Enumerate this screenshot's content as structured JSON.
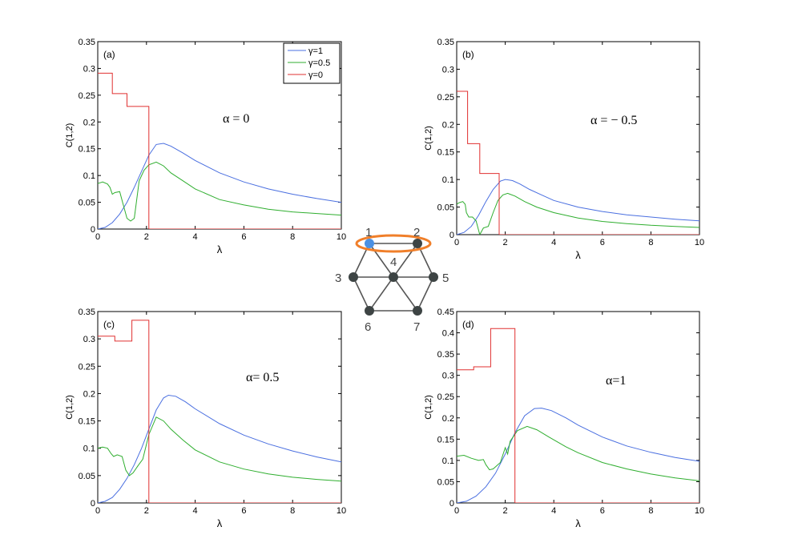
{
  "chart_data": [
    {
      "type": "line",
      "panel_label": "(a)",
      "annotation": "α = 0",
      "xlabel": "λ",
      "ylabel": "C(1,2)",
      "xlim": [
        0,
        10
      ],
      "ylim": [
        0,
        0.35
      ],
      "xticks": [
        0,
        2,
        4,
        6,
        8,
        10
      ],
      "yticks": [
        0,
        0.05,
        0.1,
        0.15,
        0.2,
        0.25,
        0.3,
        0.35
      ],
      "legend": {
        "placement": "top-right",
        "entries": [
          "γ=1",
          "γ=0.5",
          "γ=0"
        ]
      },
      "series": [
        {
          "name": "γ=1",
          "color": "#4a6fe0",
          "x": [
            0,
            0.3,
            0.6,
            0.9,
            1.2,
            1.5,
            1.8,
            2.1,
            2.4,
            2.7,
            3,
            3.5,
            4,
            5,
            6,
            7,
            8,
            9,
            10
          ],
          "y": [
            0,
            0.003,
            0.012,
            0.028,
            0.05,
            0.078,
            0.108,
            0.138,
            0.158,
            0.16,
            0.155,
            0.142,
            0.128,
            0.105,
            0.088,
            0.075,
            0.065,
            0.057,
            0.05
          ]
        },
        {
          "name": "γ=0.5",
          "color": "#2fae2f",
          "x": [
            0,
            0.2,
            0.4,
            0.5,
            0.6,
            0.7,
            0.9,
            1.05,
            1.2,
            1.35,
            1.5,
            1.7,
            1.9,
            2.1,
            2.4,
            2.7,
            3,
            3.5,
            4,
            5,
            6,
            7,
            8,
            9,
            10
          ],
          "y": [
            0.085,
            0.088,
            0.084,
            0.078,
            0.065,
            0.068,
            0.07,
            0.045,
            0.02,
            0.015,
            0.02,
            0.09,
            0.11,
            0.12,
            0.125,
            0.118,
            0.105,
            0.09,
            0.075,
            0.055,
            0.045,
            0.037,
            0.032,
            0.029,
            0.026
          ]
        },
        {
          "name": "γ=0",
          "color": "#e03030",
          "x": [
            0,
            0.6,
            0.6,
            1.2,
            1.2,
            2.1,
            2.1,
            10
          ],
          "y": [
            0.291,
            0.291,
            0.253,
            0.253,
            0.229,
            0.229,
            0,
            0
          ]
        }
      ]
    },
    {
      "type": "line",
      "panel_label": "(b)",
      "annotation": "α = − 0.5",
      "xlabel": "λ",
      "ylabel": "C(1,2)",
      "xlim": [
        0,
        10
      ],
      "ylim": [
        0,
        0.35
      ],
      "xticks": [
        0,
        2,
        4,
        6,
        8,
        10
      ],
      "yticks": [
        0,
        0.05,
        0.1,
        0.15,
        0.2,
        0.25,
        0.3,
        0.35
      ],
      "series": [
        {
          "name": "γ=1",
          "color": "#4a6fe0",
          "x": [
            0,
            0.3,
            0.6,
            0.9,
            1.2,
            1.5,
            1.8,
            2.0,
            2.3,
            2.6,
            3,
            3.5,
            4,
            5,
            6,
            7,
            8,
            9,
            10
          ],
          "y": [
            0,
            0.004,
            0.015,
            0.035,
            0.06,
            0.082,
            0.097,
            0.1,
            0.098,
            0.092,
            0.082,
            0.072,
            0.062,
            0.05,
            0.042,
            0.036,
            0.032,
            0.028,
            0.025
          ]
        },
        {
          "name": "γ=0.5",
          "color": "#2fae2f",
          "x": [
            0,
            0.1,
            0.25,
            0.35,
            0.4,
            0.5,
            0.65,
            0.8,
            0.95,
            1.1,
            1.3,
            1.5,
            1.7,
            1.9,
            2.1,
            2.4,
            2.8,
            3.3,
            4,
            5,
            6,
            7,
            8,
            9,
            10
          ],
          "y": [
            0.055,
            0.058,
            0.06,
            0.055,
            0.04,
            0.032,
            0.032,
            0.025,
            0.0,
            0.012,
            0.015,
            0.04,
            0.062,
            0.072,
            0.075,
            0.07,
            0.06,
            0.05,
            0.04,
            0.03,
            0.024,
            0.02,
            0.017,
            0.015,
            0.013
          ]
        },
        {
          "name": "γ=0",
          "color": "#e03030",
          "x": [
            0,
            0.45,
            0.45,
            0.95,
            0.95,
            1.75,
            1.75,
            10
          ],
          "y": [
            0.26,
            0.26,
            0.165,
            0.165,
            0.111,
            0.111,
            0,
            0
          ]
        }
      ]
    },
    {
      "type": "line",
      "panel_label": "(c)",
      "annotation": "α= 0.5",
      "xlabel": "λ",
      "ylabel": "C(1,2)",
      "xlim": [
        0,
        10
      ],
      "ylim": [
        0,
        0.35
      ],
      "xticks": [
        0,
        2,
        4,
        6,
        8,
        10
      ],
      "yticks": [
        0,
        0.05,
        0.1,
        0.15,
        0.2,
        0.25,
        0.3,
        0.35
      ],
      "series": [
        {
          "name": "γ=1",
          "color": "#4a6fe0",
          "x": [
            0,
            0.3,
            0.6,
            0.9,
            1.2,
            1.5,
            1.8,
            2.1,
            2.4,
            2.7,
            2.9,
            3.2,
            3.6,
            4,
            5,
            6,
            7,
            8,
            9,
            10
          ],
          "y": [
            0,
            0.003,
            0.01,
            0.025,
            0.045,
            0.07,
            0.1,
            0.135,
            0.17,
            0.192,
            0.197,
            0.195,
            0.185,
            0.172,
            0.145,
            0.124,
            0.108,
            0.095,
            0.084,
            0.075
          ]
        },
        {
          "name": "γ=0.5",
          "color": "#2fae2f",
          "x": [
            0,
            0.2,
            0.4,
            0.55,
            0.65,
            0.8,
            1.0,
            1.15,
            1.3,
            1.45,
            1.65,
            1.85,
            2.1,
            2.4,
            2.7,
            3,
            3.5,
            4,
            5,
            6,
            7,
            8,
            9,
            10
          ],
          "y": [
            0.1,
            0.102,
            0.1,
            0.09,
            0.085,
            0.088,
            0.085,
            0.06,
            0.05,
            0.055,
            0.068,
            0.08,
            0.125,
            0.157,
            0.15,
            0.135,
            0.115,
            0.097,
            0.075,
            0.062,
            0.053,
            0.047,
            0.043,
            0.04
          ]
        },
        {
          "name": "γ=0",
          "color": "#e03030",
          "x": [
            0,
            0.7,
            0.7,
            1.4,
            1.4,
            2.1,
            2.1,
            10
          ],
          "y": [
            0.305,
            0.305,
            0.296,
            0.296,
            0.334,
            0.334,
            0,
            0
          ]
        }
      ]
    },
    {
      "type": "line",
      "panel_label": "(d)",
      "annotation": "α=1",
      "xlabel": "λ",
      "ylabel": "C(1,2)",
      "xlim": [
        0,
        10
      ],
      "ylim": [
        0,
        0.45
      ],
      "xticks": [
        0,
        2,
        4,
        6,
        8,
        10
      ],
      "yticks": [
        0,
        0.05,
        0.1,
        0.15,
        0.2,
        0.25,
        0.3,
        0.35,
        0.4,
        0.45
      ],
      "series": [
        {
          "name": "γ=1",
          "color": "#4a6fe0",
          "x": [
            0,
            0.4,
            0.8,
            1.2,
            1.6,
            2.0,
            2.4,
            2.8,
            3.2,
            3.5,
            3.9,
            4.5,
            5,
            6,
            7,
            8,
            9,
            10
          ],
          "y": [
            0,
            0.004,
            0.016,
            0.038,
            0.07,
            0.115,
            0.165,
            0.205,
            0.222,
            0.223,
            0.217,
            0.2,
            0.183,
            0.155,
            0.134,
            0.119,
            0.107,
            0.098
          ]
        },
        {
          "name": "γ=0.5",
          "color": "#2fae2f",
          "x": [
            0,
            0.3,
            0.6,
            0.9,
            1.1,
            1.2,
            1.35,
            1.5,
            1.8,
            2.0,
            2.1,
            2.2,
            2.5,
            2.9,
            3.3,
            3.8,
            4.5,
            5,
            6,
            7,
            8,
            9,
            10
          ],
          "y": [
            0.11,
            0.112,
            0.105,
            0.1,
            0.102,
            0.09,
            0.078,
            0.08,
            0.095,
            0.13,
            0.115,
            0.145,
            0.17,
            0.18,
            0.172,
            0.155,
            0.132,
            0.118,
            0.095,
            0.08,
            0.068,
            0.059,
            0.052
          ]
        },
        {
          "name": "γ=0",
          "color": "#e03030",
          "x": [
            0,
            0.7,
            0.7,
            1.4,
            1.4,
            2.4,
            2.4,
            10
          ],
          "y": [
            0.313,
            0.313,
            0.32,
            0.32,
            0.41,
            0.41,
            0,
            0
          ]
        }
      ]
    }
  ],
  "inset_diagram": {
    "node_labels": [
      "1",
      "2",
      "3",
      "4",
      "5",
      "6",
      "7"
    ],
    "highlight_node": "1",
    "highlight_color": "#4a90e2",
    "node_color": "#3d4444",
    "ring_color": "#f07f2a"
  }
}
